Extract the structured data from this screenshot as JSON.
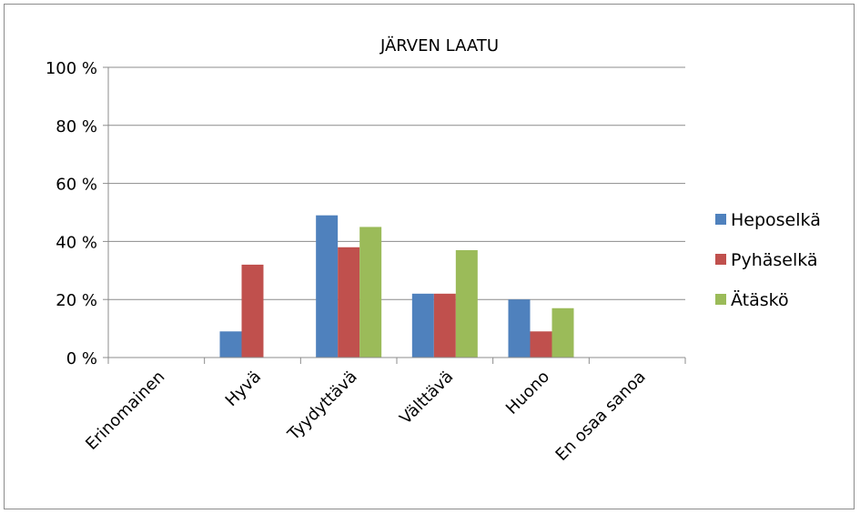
{
  "chart_data": {
    "type": "bar",
    "title": "JÄRVEN LAATU",
    "categories": [
      "Erinomainen",
      "Hyvä",
      "Tyydyttävä",
      "Välttävä",
      "Huono",
      "En osaa sanoa"
    ],
    "y_ticks": [
      "0 %",
      "20 %",
      "40 %",
      "60 %",
      "80 %",
      "100 %"
    ],
    "ylim": [
      0,
      100
    ],
    "grid": true,
    "legend": "right",
    "series": [
      {
        "name": "Heposelkä",
        "color": "#4f81bd",
        "values": [
          0,
          9,
          49,
          22,
          20,
          0
        ]
      },
      {
        "name": "Pyhäselkä",
        "color": "#c0504d",
        "values": [
          0,
          32,
          38,
          22,
          9,
          0
        ]
      },
      {
        "name": "Ätäskö",
        "color": "#9bbb59",
        "values": [
          0,
          0,
          45,
          37,
          17,
          0
        ]
      }
    ]
  }
}
